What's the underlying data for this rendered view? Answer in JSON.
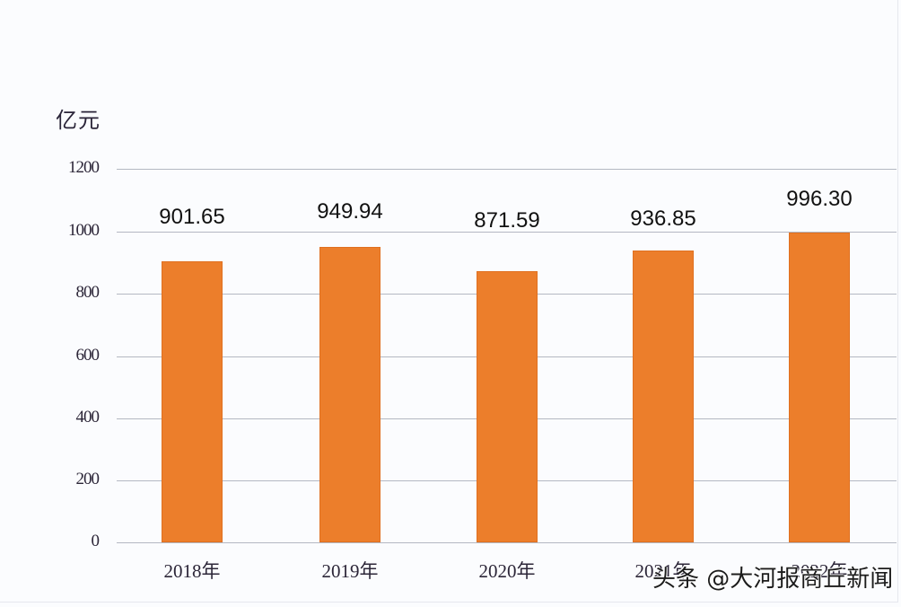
{
  "chart_data": {
    "type": "bar",
    "title": "",
    "xlabel": "",
    "ylabel": "亿元",
    "ylim": [
      0,
      1200
    ],
    "yticks": [
      0,
      200,
      400,
      600,
      800,
      1000,
      1200
    ],
    "grid": true,
    "legend": null,
    "categories": [
      "2018年",
      "2019年",
      "2020年",
      "2021年",
      "2022年"
    ],
    "values": [
      901.65,
      949.94,
      871.59,
      936.85,
      996.3
    ],
    "value_labels": [
      "901.65",
      "949.94",
      "871.59",
      "936.85",
      "996.30"
    ],
    "bar_color": "#ec7e2b"
  },
  "axis": {
    "unit": "亿元",
    "yticks": [
      "1200",
      "1000",
      "800",
      "600",
      "400",
      "200",
      "0"
    ]
  },
  "watermark": "头条 @大河报商丘新闻"
}
